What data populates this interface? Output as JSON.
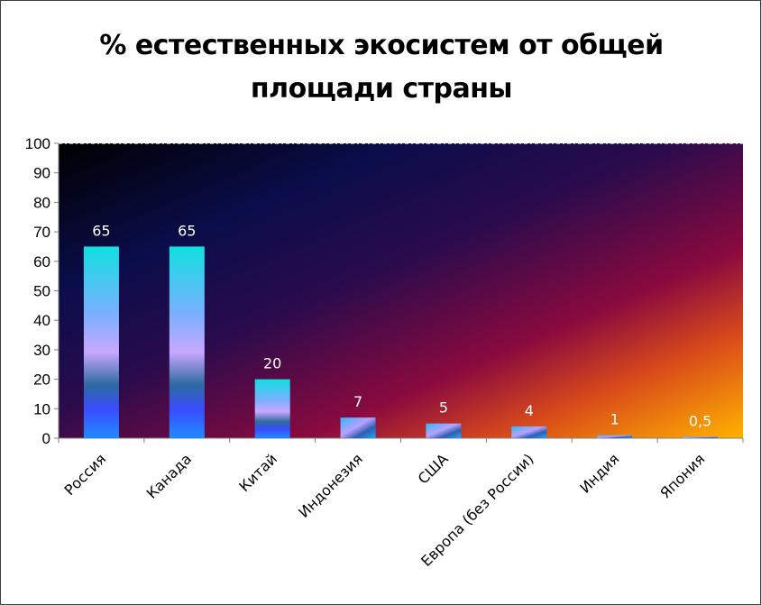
{
  "chart_data": {
    "type": "bar",
    "title": "% естественных экосистем от общей площади страны",
    "title_lines": [
      "% естественных экосистем от общей",
      "площади страны"
    ],
    "categories": [
      "Россия",
      "Канада",
      "Китай",
      "Индонезия",
      "США",
      "Европа (без России)",
      "Индия",
      "Япония"
    ],
    "values": [
      65,
      65,
      20,
      7,
      5,
      4,
      1,
      0.5
    ],
    "value_labels": [
      "65",
      "65",
      "20",
      "7",
      "5",
      "4",
      "1",
      "0,5"
    ],
    "ylim": [
      0,
      100
    ],
    "yticks": [
      "0",
      "10",
      "20",
      "30",
      "40",
      "50",
      "60",
      "70",
      "80",
      "90",
      "100"
    ],
    "xlabel": "",
    "ylabel": "",
    "gridlines": "top",
    "legend": "none"
  }
}
